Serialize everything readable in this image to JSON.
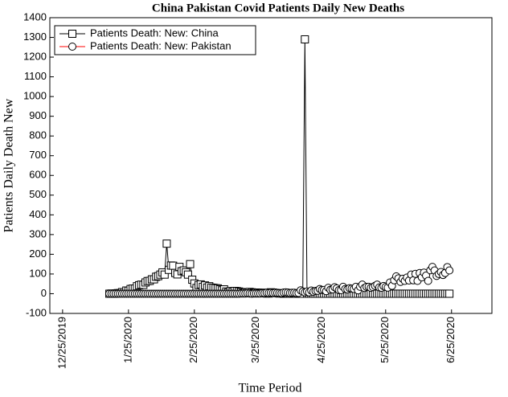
{
  "chart_data": {
    "type": "line",
    "title": "China Pakistan Covid Patients Daily New Deaths",
    "x_label": "Time Period",
    "y_label": "Patients Daily Death New",
    "x": [
      "2020-01-16",
      "2020-01-17",
      "2020-01-18",
      "2020-01-19",
      "2020-01-20",
      "2020-01-21",
      "2020-01-22",
      "2020-01-23",
      "2020-01-24",
      "2020-01-25",
      "2020-01-26",
      "2020-01-27",
      "2020-01-28",
      "2020-01-29",
      "2020-01-30",
      "2020-01-31",
      "2020-02-01",
      "2020-02-02",
      "2020-02-03",
      "2020-02-04",
      "2020-02-05",
      "2020-02-06",
      "2020-02-07",
      "2020-02-08",
      "2020-02-09",
      "2020-02-10",
      "2020-02-11",
      "2020-02-12",
      "2020-02-13",
      "2020-02-14",
      "2020-02-15",
      "2020-02-16",
      "2020-02-17",
      "2020-02-18",
      "2020-02-19",
      "2020-02-20",
      "2020-02-21",
      "2020-02-22",
      "2020-02-23",
      "2020-02-24",
      "2020-02-25",
      "2020-02-26",
      "2020-02-27",
      "2020-02-28",
      "2020-02-29",
      "2020-03-01",
      "2020-03-02",
      "2020-03-03",
      "2020-03-04",
      "2020-03-05",
      "2020-03-06",
      "2020-03-07",
      "2020-03-08",
      "2020-03-09",
      "2020-03-10",
      "2020-03-11",
      "2020-03-12",
      "2020-03-13",
      "2020-03-14",
      "2020-03-15",
      "2020-03-16",
      "2020-03-17",
      "2020-03-18",
      "2020-03-19",
      "2020-03-20",
      "2020-03-21",
      "2020-03-22",
      "2020-03-23",
      "2020-03-24",
      "2020-03-25",
      "2020-03-26",
      "2020-03-27",
      "2020-03-28",
      "2020-03-29",
      "2020-03-30",
      "2020-03-31",
      "2020-04-01",
      "2020-04-02",
      "2020-04-03",
      "2020-04-04",
      "2020-04-05",
      "2020-04-06",
      "2020-04-07",
      "2020-04-08",
      "2020-04-09",
      "2020-04-10",
      "2020-04-11",
      "2020-04-12",
      "2020-04-13",
      "2020-04-14",
      "2020-04-15",
      "2020-04-16",
      "2020-04-17",
      "2020-04-18",
      "2020-04-19",
      "2020-04-20",
      "2020-04-21",
      "2020-04-22",
      "2020-04-23",
      "2020-04-24",
      "2020-04-25",
      "2020-04-26",
      "2020-04-27",
      "2020-04-28",
      "2020-04-29",
      "2020-04-30",
      "2020-05-01",
      "2020-05-02",
      "2020-05-03",
      "2020-05-04",
      "2020-05-05",
      "2020-05-06",
      "2020-05-07",
      "2020-05-08",
      "2020-05-09",
      "2020-05-10",
      "2020-05-11",
      "2020-05-12",
      "2020-05-13",
      "2020-05-14",
      "2020-05-15",
      "2020-05-16",
      "2020-05-17",
      "2020-05-18",
      "2020-05-19",
      "2020-05-20",
      "2020-05-21",
      "2020-05-22",
      "2020-05-23",
      "2020-05-24",
      "2020-05-25",
      "2020-05-26",
      "2020-05-27",
      "2020-05-28",
      "2020-05-29",
      "2020-05-30",
      "2020-05-31",
      "2020-06-01",
      "2020-06-02",
      "2020-06-03",
      "2020-06-04",
      "2020-06-05",
      "2020-06-06",
      "2020-06-07",
      "2020-06-08",
      "2020-06-09",
      "2020-06-10",
      "2020-06-11",
      "2020-06-12",
      "2020-06-13",
      "2020-06-14",
      "2020-06-15",
      "2020-06-16",
      "2020-06-17",
      "2020-06-18",
      "2020-06-19",
      "2020-06-20",
      "2020-06-21",
      "2020-06-22",
      "2020-06-23",
      "2020-06-24"
    ],
    "series": [
      {
        "name": "Patients Death: New: China",
        "color": "#000000",
        "marker": "square",
        "values": [
          0,
          1,
          0,
          1,
          3,
          3,
          8,
          8,
          16,
          15,
          24,
          26,
          26,
          38,
          43,
          46,
          45,
          57,
          64,
          65,
          73,
          73,
          86,
          89,
          97,
          108,
          97,
          254,
          121,
          143,
          142,
          105,
          98,
          136,
          114,
          118,
          109,
          97,
          150,
          71,
          52,
          29,
          44,
          47,
          35,
          42,
          31,
          38,
          31,
          30,
          28,
          27,
          22,
          17,
          22,
          11,
          7,
          13,
          10,
          14,
          13,
          11,
          8,
          3,
          7,
          6,
          9,
          7,
          4,
          6,
          5,
          3,
          5,
          4,
          1,
          1,
          7,
          6,
          4,
          3,
          1,
          2,
          0,
          2,
          1,
          1,
          0,
          2,
          0,
          0,
          1,
          0,
          1290,
          0,
          0,
          0,
          0,
          0,
          0,
          0,
          0,
          0,
          0,
          0,
          0,
          0,
          0,
          0,
          0,
          0,
          0,
          0,
          0,
          0,
          0,
          0,
          0,
          0,
          0,
          0,
          0,
          0,
          0,
          0,
          0,
          0,
          0,
          0,
          0,
          0,
          0,
          0,
          0,
          0,
          0,
          0,
          0,
          0,
          0,
          0,
          0,
          0,
          0,
          0,
          0,
          0,
          0,
          0,
          0,
          0,
          0,
          0,
          0,
          0,
          0,
          0,
          0,
          0,
          0,
          0,
          0
        ]
      },
      {
        "name": "Patients Death: New: Pakistan",
        "color": "#ff0000",
        "marker": "circle",
        "values": [
          0,
          0,
          0,
          0,
          0,
          0,
          0,
          0,
          0,
          0,
          0,
          0,
          0,
          0,
          0,
          0,
          0,
          0,
          0,
          0,
          0,
          0,
          0,
          0,
          0,
          0,
          0,
          0,
          0,
          0,
          0,
          0,
          0,
          0,
          0,
          0,
          0,
          0,
          0,
          0,
          0,
          0,
          0,
          0,
          0,
          0,
          0,
          0,
          0,
          0,
          0,
          0,
          0,
          0,
          0,
          0,
          0,
          0,
          0,
          0,
          0,
          0,
          1,
          1,
          1,
          2,
          1,
          0,
          1,
          1,
          1,
          1,
          3,
          3,
          5,
          4,
          5,
          4,
          5,
          4,
          3,
          3,
          6,
          7,
          6,
          4,
          5,
          5,
          3,
          4,
          17,
          11,
          7,
          11,
          7,
          16,
          10,
          14,
          15,
          24,
          19,
          19,
          13,
          30,
          20,
          22,
          33,
          27,
          18,
          18,
          35,
          24,
          22,
          28,
          26,
          24,
          35,
          17,
          35,
          46,
          29,
          35,
          35,
          30,
          34,
          40,
          46,
          32,
          30,
          39,
          34,
          31,
          57,
          40,
          68,
          88,
          78,
          60,
          76,
          65,
          82,
          67,
          97,
          68,
          101,
          65,
          105,
          83,
          107,
          92,
          65,
          119,
          136,
          118,
          90,
          100,
          110,
          95,
          105,
          135,
          118
        ]
      }
    ],
    "xlim": [
      "2019-12-19",
      "2020-07-14"
    ],
    "xticks": [
      {
        "value": "2019-12-25",
        "label": "12/25/2019"
      },
      {
        "value": "2020-01-25",
        "label": "1/25/2020"
      },
      {
        "value": "2020-02-25",
        "label": "2/25/2020"
      },
      {
        "value": "2020-03-25",
        "label": "3/25/2020"
      },
      {
        "value": "2020-04-25",
        "label": "4/25/2020"
      },
      {
        "value": "2020-05-25",
        "label": "5/25/2020"
      },
      {
        "value": "2020-06-25",
        "label": "6/25/2020"
      }
    ],
    "ylim": [
      -100,
      1400
    ],
    "yticks": [
      -100,
      0,
      100,
      200,
      300,
      400,
      500,
      600,
      700,
      800,
      900,
      1000,
      1100,
      1200,
      1300,
      1400
    ],
    "legend": "upper left",
    "grid": false
  }
}
